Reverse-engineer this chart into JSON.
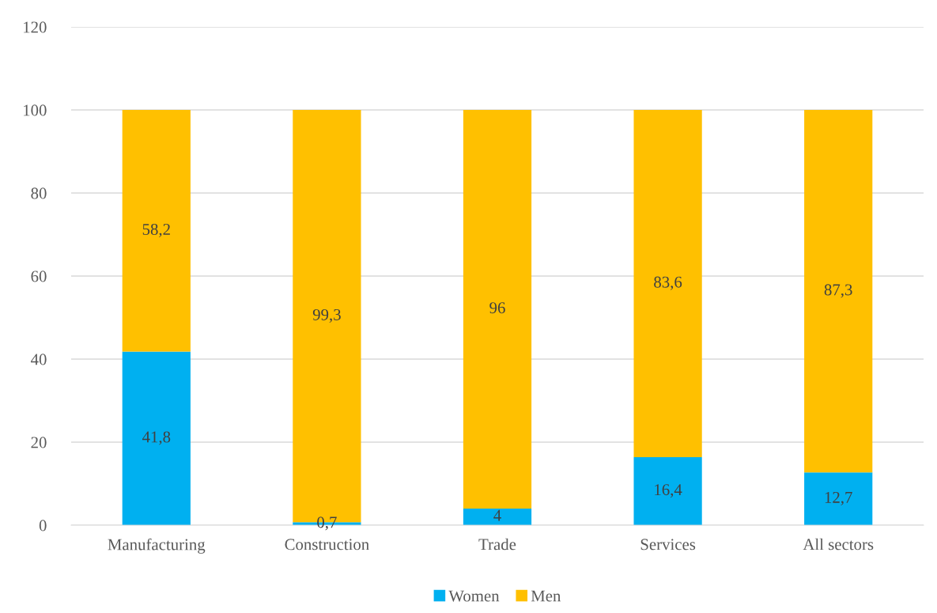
{
  "chart_data": {
    "type": "bar",
    "stacked": true,
    "categories": [
      "Manufacturing",
      "Construction",
      "Trade",
      "Services",
      "All sectors"
    ],
    "series": [
      {
        "name": "Women",
        "color": "#00b0f0",
        "values": [
          41.8,
          0.7,
          4,
          16.4,
          12.7
        ],
        "value_labels": [
          "41,8",
          "0,7",
          "4",
          "16,4",
          "12,7"
        ]
      },
      {
        "name": "Men",
        "color": "#ffc000",
        "values": [
          58.2,
          99.3,
          96,
          83.6,
          87.3
        ],
        "value_labels": [
          "58,2",
          "99,3",
          "96",
          "83,6",
          "87,3"
        ]
      }
    ],
    "ylim": [
      0,
      120
    ],
    "yticks": [
      0,
      20,
      40,
      60,
      80,
      100,
      120
    ],
    "grid": "y",
    "legend": "bottom"
  }
}
